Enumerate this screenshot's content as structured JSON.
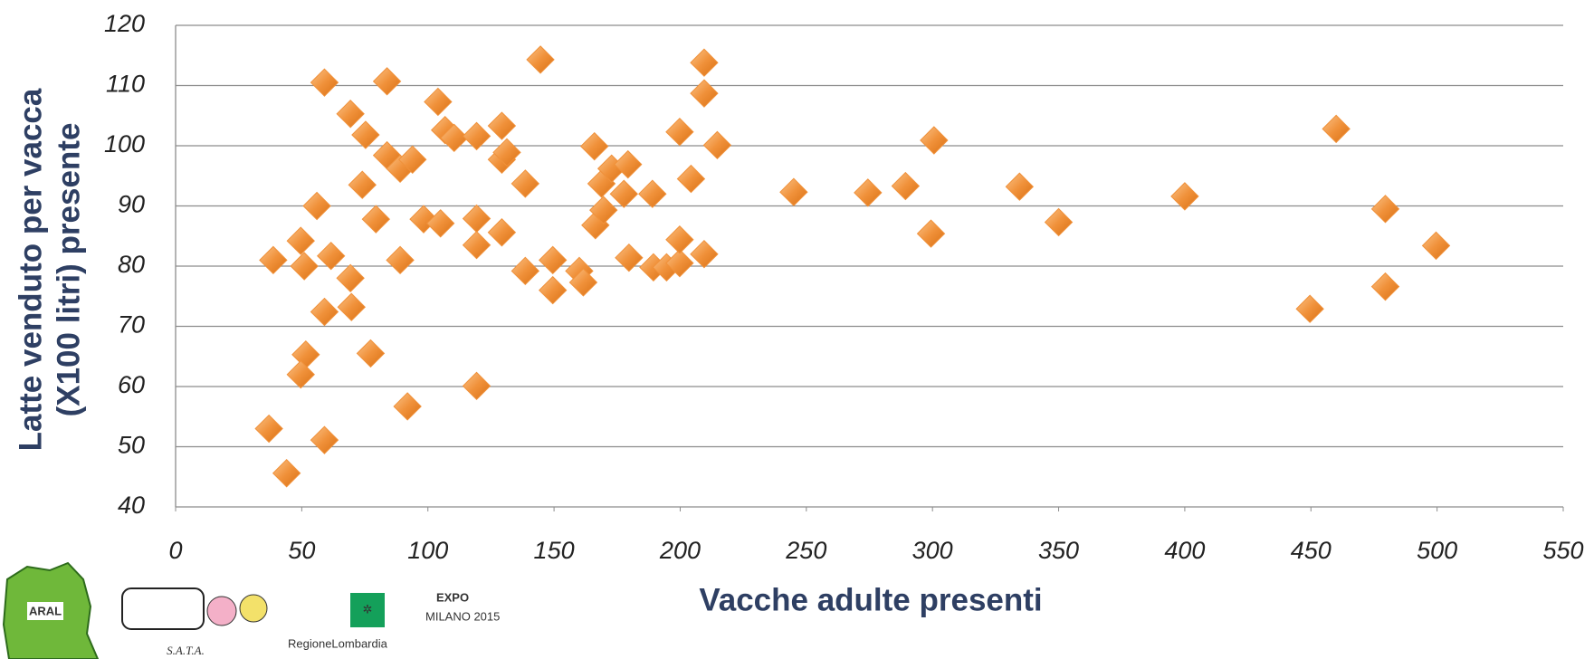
{
  "chart_data": {
    "type": "scatter",
    "x_label": "Vacche adulte presenti",
    "y_label": [
      "Latte venduto per vacca",
      "(X100 litri) presente"
    ],
    "color": "#f0913a",
    "grid": true,
    "xlim": [
      0,
      550
    ],
    "xticks": [
      0,
      50,
      100,
      150,
      200,
      250,
      300,
      350,
      400,
      450,
      500,
      550
    ],
    "ylim": [
      40,
      120
    ],
    "yticks": [
      40,
      50,
      60,
      70,
      80,
      90,
      100,
      110,
      120
    ],
    "x": [
      38.7,
      44,
      37,
      49.6,
      51,
      56,
      59,
      61.6,
      59,
      51.6,
      49.6,
      59,
      69.3,
      69.3,
      69.7,
      74,
      75.3,
      77.3,
      79.4,
      83.8,
      83.8,
      89,
      93.9,
      89,
      91.9,
      98.3,
      105,
      104,
      106.8,
      110.4,
      119.3,
      119.3,
      119.3,
      119.3,
      129.3,
      129.3,
      129.3,
      131.3,
      138.6,
      138.6,
      144.6,
      149.5,
      149.5,
      160,
      161.6,
      166,
      166.4,
      168.8,
      169.6,
      172.8,
      177.7,
      179.3,
      179.7,
      189,
      189.4,
      194.6,
      199.8,
      199.8,
      199.8,
      204.3,
      209.5,
      209.5,
      209.5,
      214.7,
      245,
      274.4,
      289.3,
      299.4,
      300.6,
      334.5,
      350,
      400,
      449.6,
      460,
      479.5,
      479.5,
      499.6
    ],
    "values": [
      81,
      45.6,
      53,
      84.2,
      80,
      90,
      110.5,
      81.7,
      72.4,
      65.3,
      62,
      51.1,
      105.3,
      78,
      73.2,
      93.5,
      101.8,
      65.5,
      87.8,
      110.7,
      98.4,
      96.2,
      97.7,
      81,
      56.7,
      87.8,
      87.1,
      107.3,
      102.6,
      101.3,
      101.6,
      87.9,
      83.5,
      60.1,
      103.3,
      85.6,
      97.7,
      98.9,
      79.2,
      93.7,
      114.3,
      81,
      76,
      79.2,
      77.3,
      99.9,
      86.8,
      93.7,
      89.3,
      96.2,
      92,
      96.9,
      81.4,
      92,
      79.8,
      79.8,
      80.5,
      102.3,
      84.4,
      94.5,
      113.8,
      108.7,
      82,
      100.1,
      92.3,
      92.2,
      93.3,
      85.4,
      100.9,
      93.2,
      87.3,
      91.6,
      72.9,
      102.8,
      89.5,
      76.6,
      83.4
    ]
  },
  "logos": {
    "aral": "ARAL",
    "sata": "S.A.T.A.",
    "regione": "RegioneLombardia",
    "expo": "EXPO",
    "expo_sub": "MILANO 2015"
  }
}
